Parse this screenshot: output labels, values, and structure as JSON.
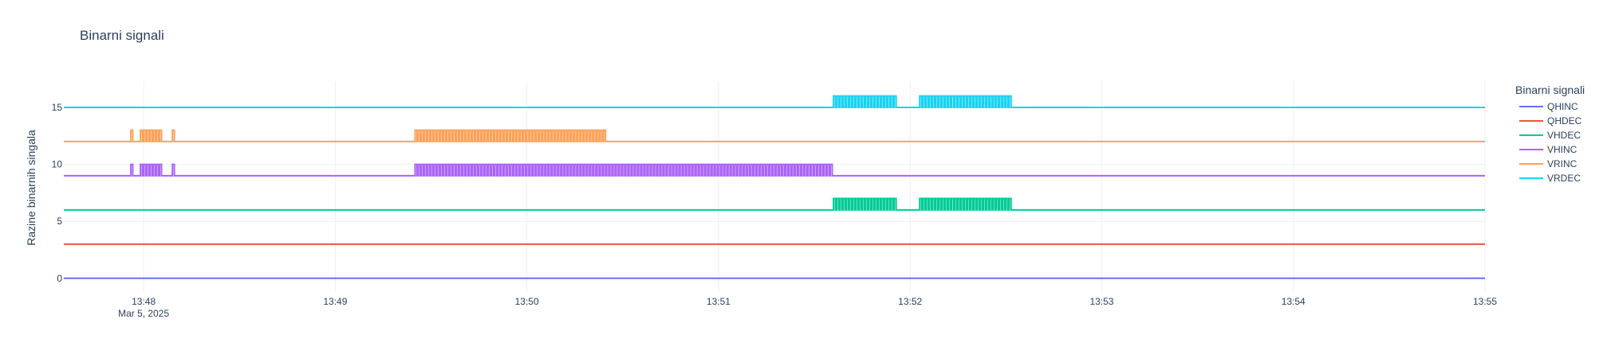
{
  "chart_data": {
    "type": "line",
    "title": "Binarni signali",
    "xlabel": "",
    "ylabel": "Razine binarnih singala",
    "legend_title": "Binarni signali",
    "legend_position": "right",
    "grid": true,
    "x_start_label": "Mar 5, 2025",
    "xlim": [
      "13:47:35",
      "13:55:00"
    ],
    "ylim": [
      -1.2,
      17.3
    ],
    "x_ticks": [
      "13:48",
      "13:49",
      "13:50",
      "13:51",
      "13:52",
      "13:53",
      "13:54",
      "13:55"
    ],
    "y_ticks": [
      0,
      5,
      10,
      15
    ],
    "series": [
      {
        "name": "QHINC",
        "color": "#636efa",
        "baseline": 0,
        "pulse_height": 1,
        "bursts": []
      },
      {
        "name": "QHDEC",
        "color": "#EF553B",
        "baseline": 3,
        "pulse_height": 1,
        "bursts": []
      },
      {
        "name": "VHDEC",
        "color": "#00cc96",
        "baseline": 6,
        "pulse_height": 1,
        "bursts": [
          [
            "13:51:36",
            "13:51:56"
          ],
          [
            "13:52:03",
            "13:52:32"
          ]
        ]
      },
      {
        "name": "VHINC",
        "color": "#ab63fa",
        "baseline": 9,
        "pulse_height": 1,
        "bursts": [
          [
            "13:47:56",
            "13:47:57"
          ],
          [
            "13:47:59",
            "13:48:06"
          ],
          [
            "13:48:09",
            "13:48:10"
          ],
          [
            "13:49:25",
            "13:51:36"
          ]
        ]
      },
      {
        "name": "VRINC",
        "color": "#FFA15A",
        "baseline": 12,
        "pulse_height": 1,
        "bursts": [
          [
            "13:47:56",
            "13:47:57"
          ],
          [
            "13:47:59",
            "13:48:06"
          ],
          [
            "13:48:09",
            "13:48:10"
          ],
          [
            "13:49:25",
            "13:50:25"
          ]
        ]
      },
      {
        "name": "VRDEC",
        "color": "#19d3f3",
        "baseline": 15,
        "pulse_height": 1,
        "bursts": [
          [
            "13:51:36",
            "13:51:56"
          ],
          [
            "13:52:03",
            "13:52:32"
          ]
        ]
      }
    ]
  }
}
